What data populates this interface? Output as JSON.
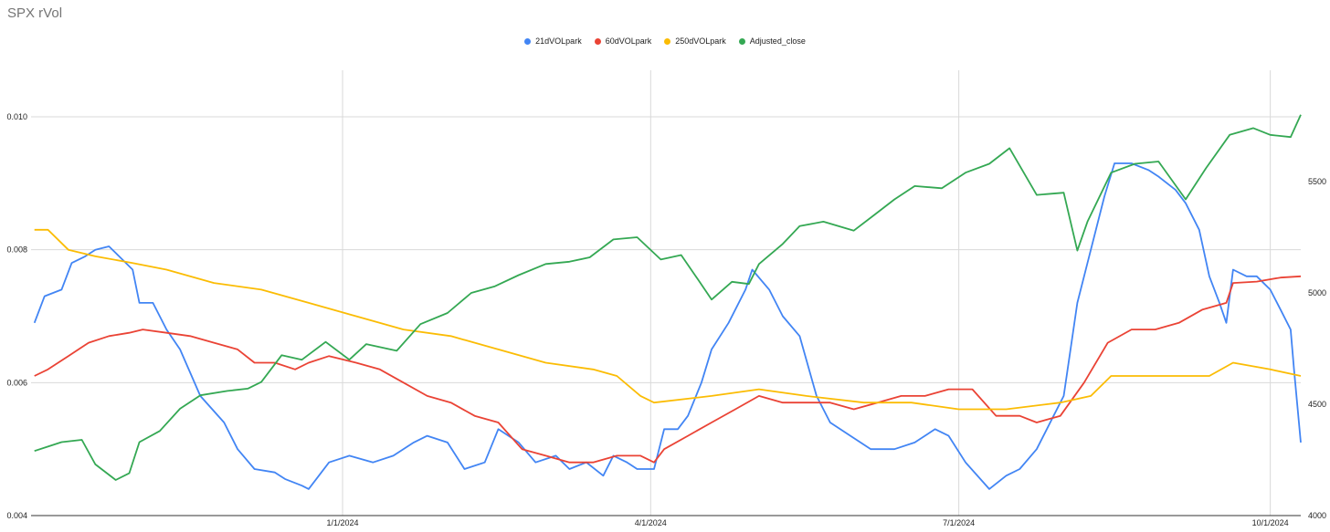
{
  "chart_data": {
    "type": "line",
    "title": "SPX rVol",
    "x_labels": [
      "1/1/2024",
      "4/1/2024",
      "7/1/2024",
      "10/1/2024"
    ],
    "x_range": [
      "2023-10-01",
      "2024-10-10"
    ],
    "y_left": {
      "range": [
        0.004,
        0.0107
      ],
      "ticks": [
        "0.004",
        "0.006",
        "0.008",
        "0.010"
      ]
    },
    "y_right": {
      "range": [
        4000,
        6000
      ],
      "ticks": [
        "4000",
        "4500",
        "5000",
        "5500"
      ]
    },
    "grid": true,
    "legend_position": "top",
    "series": [
      {
        "name": "21dVOLpark",
        "color": "#4285f4",
        "axis": "left",
        "points": [
          [
            "2023-10-02",
            0.0069
          ],
          [
            "2023-10-05",
            0.0073
          ],
          [
            "2023-10-10",
            0.0074
          ],
          [
            "2023-10-13",
            0.0078
          ],
          [
            "2023-10-17",
            0.0079
          ],
          [
            "2023-10-20",
            0.008
          ],
          [
            "2023-10-24",
            0.00805
          ],
          [
            "2023-10-27",
            0.0079
          ],
          [
            "2023-10-31",
            0.0077
          ],
          [
            "2023-11-02",
            0.0072
          ],
          [
            "2023-11-06",
            0.0072
          ],
          [
            "2023-11-10",
            0.0068
          ],
          [
            "2023-11-14",
            0.0065
          ],
          [
            "2023-11-20",
            0.0058
          ],
          [
            "2023-11-27",
            0.0054
          ],
          [
            "2023-12-01",
            0.005
          ],
          [
            "2023-12-06",
            0.0047
          ],
          [
            "2023-12-12",
            0.00465
          ],
          [
            "2023-12-15",
            0.00455
          ],
          [
            "2023-12-20",
            0.00445
          ],
          [
            "2023-12-22",
            0.0044
          ],
          [
            "2023-12-28",
            0.0048
          ],
          [
            "2024-01-03",
            0.0049
          ],
          [
            "2024-01-10",
            0.0048
          ],
          [
            "2024-01-16",
            0.0049
          ],
          [
            "2024-01-22",
            0.0051
          ],
          [
            "2024-01-26",
            0.0052
          ],
          [
            "2024-02-01",
            0.0051
          ],
          [
            "2024-02-06",
            0.0047
          ],
          [
            "2024-02-12",
            0.0048
          ],
          [
            "2024-02-16",
            0.0053
          ],
          [
            "2024-02-22",
            0.0051
          ],
          [
            "2024-02-27",
            0.0048
          ],
          [
            "2024-03-04",
            0.0049
          ],
          [
            "2024-03-08",
            0.0047
          ],
          [
            "2024-03-13",
            0.0048
          ],
          [
            "2024-03-18",
            0.0046
          ],
          [
            "2024-03-21",
            0.0049
          ],
          [
            "2024-03-25",
            0.0048
          ],
          [
            "2024-03-28",
            0.0047
          ],
          [
            "2024-04-02",
            0.0047
          ],
          [
            "2024-04-05",
            0.0053
          ],
          [
            "2024-04-09",
            0.0053
          ],
          [
            "2024-04-12",
            0.0055
          ],
          [
            "2024-04-16",
            0.006
          ],
          [
            "2024-04-19",
            0.0065
          ],
          [
            "2024-04-24",
            0.0069
          ],
          [
            "2024-04-29",
            0.0074
          ],
          [
            "2024-05-01",
            0.0077
          ],
          [
            "2024-05-06",
            0.0074
          ],
          [
            "2024-05-10",
            0.007
          ],
          [
            "2024-05-15",
            0.0067
          ],
          [
            "2024-05-20",
            0.0058
          ],
          [
            "2024-05-24",
            0.0054
          ],
          [
            "2024-05-30",
            0.0052
          ],
          [
            "2024-06-05",
            0.005
          ],
          [
            "2024-06-12",
            0.005
          ],
          [
            "2024-06-18",
            0.0051
          ],
          [
            "2024-06-24",
            0.0053
          ],
          [
            "2024-06-28",
            0.0052
          ],
          [
            "2024-07-03",
            0.0048
          ],
          [
            "2024-07-10",
            0.0044
          ],
          [
            "2024-07-15",
            0.0046
          ],
          [
            "2024-07-19",
            0.0047
          ],
          [
            "2024-07-24",
            0.005
          ],
          [
            "2024-07-29",
            0.0055
          ],
          [
            "2024-08-01",
            0.0058
          ],
          [
            "2024-08-05",
            0.0072
          ],
          [
            "2024-08-08",
            0.0078
          ],
          [
            "2024-08-13",
            0.0088
          ],
          [
            "2024-08-16",
            0.0093
          ],
          [
            "2024-08-21",
            0.0093
          ],
          [
            "2024-08-26",
            0.0092
          ],
          [
            "2024-08-29",
            0.0091
          ],
          [
            "2024-09-03",
            0.0089
          ],
          [
            "2024-09-06",
            0.0087
          ],
          [
            "2024-09-10",
            0.0083
          ],
          [
            "2024-09-13",
            0.0076
          ],
          [
            "2024-09-16",
            0.0072
          ],
          [
            "2024-09-18",
            0.0069
          ],
          [
            "2024-09-20",
            0.0077
          ],
          [
            "2024-09-24",
            0.0076
          ],
          [
            "2024-09-27",
            0.0076
          ],
          [
            "2024-10-01",
            0.0074
          ],
          [
            "2024-10-04",
            0.0071
          ],
          [
            "2024-10-07",
            0.0068
          ],
          [
            "2024-10-08",
            0.0062
          ],
          [
            "2024-10-10",
            0.0051
          ]
        ]
      },
      {
        "name": "60dVOLpark",
        "color": "#ea4335",
        "axis": "left",
        "points": [
          [
            "2023-10-02",
            0.0061
          ],
          [
            "2023-10-06",
            0.0062
          ],
          [
            "2023-10-12",
            0.0064
          ],
          [
            "2023-10-18",
            0.0066
          ],
          [
            "2023-10-24",
            0.0067
          ],
          [
            "2023-10-30",
            0.00675
          ],
          [
            "2023-11-03",
            0.0068
          ],
          [
            "2023-11-10",
            0.00675
          ],
          [
            "2023-11-17",
            0.0067
          ],
          [
            "2023-11-24",
            0.0066
          ],
          [
            "2023-12-01",
            0.0065
          ],
          [
            "2023-12-06",
            0.0063
          ],
          [
            "2023-12-12",
            0.0063
          ],
          [
            "2023-12-18",
            0.0062
          ],
          [
            "2023-12-22",
            0.0063
          ],
          [
            "2023-12-28",
            0.0064
          ],
          [
            "2024-01-05",
            0.0063
          ],
          [
            "2024-01-12",
            0.0062
          ],
          [
            "2024-01-19",
            0.006
          ],
          [
            "2024-01-26",
            0.0058
          ],
          [
            "2024-02-02",
            0.0057
          ],
          [
            "2024-02-09",
            0.0055
          ],
          [
            "2024-02-16",
            0.0054
          ],
          [
            "2024-02-23",
            0.005
          ],
          [
            "2024-03-01",
            0.0049
          ],
          [
            "2024-03-08",
            0.0048
          ],
          [
            "2024-03-15",
            0.0048
          ],
          [
            "2024-03-22",
            0.0049
          ],
          [
            "2024-03-29",
            0.0049
          ],
          [
            "2024-04-02",
            0.0048
          ],
          [
            "2024-04-05",
            0.005
          ],
          [
            "2024-04-12",
            0.0052
          ],
          [
            "2024-04-19",
            0.0054
          ],
          [
            "2024-04-26",
            0.0056
          ],
          [
            "2024-05-03",
            0.0058
          ],
          [
            "2024-05-10",
            0.0057
          ],
          [
            "2024-05-17",
            0.0057
          ],
          [
            "2024-05-24",
            0.0057
          ],
          [
            "2024-05-31",
            0.0056
          ],
          [
            "2024-06-07",
            0.0057
          ],
          [
            "2024-06-14",
            0.0058
          ],
          [
            "2024-06-21",
            0.0058
          ],
          [
            "2024-06-28",
            0.0059
          ],
          [
            "2024-07-05",
            0.0059
          ],
          [
            "2024-07-12",
            0.0055
          ],
          [
            "2024-07-19",
            0.0055
          ],
          [
            "2024-07-24",
            0.0054
          ],
          [
            "2024-07-31",
            0.0055
          ],
          [
            "2024-08-07",
            0.006
          ],
          [
            "2024-08-14",
            0.0066
          ],
          [
            "2024-08-21",
            0.0068
          ],
          [
            "2024-08-28",
            0.0068
          ],
          [
            "2024-09-04",
            0.0069
          ],
          [
            "2024-09-11",
            0.0071
          ],
          [
            "2024-09-18",
            0.0072
          ],
          [
            "2024-09-20",
            0.0075
          ],
          [
            "2024-09-27",
            0.00752
          ],
          [
            "2024-10-04",
            0.00758
          ],
          [
            "2024-10-10",
            0.0076
          ]
        ]
      },
      {
        "name": "250dVOLpark",
        "color": "#fbbc04",
        "axis": "left",
        "points": [
          [
            "2023-10-02",
            0.0083
          ],
          [
            "2023-10-06",
            0.0083
          ],
          [
            "2023-10-12",
            0.008
          ],
          [
            "2023-10-20",
            0.0079
          ],
          [
            "2023-10-31",
            0.0078
          ],
          [
            "2023-11-10",
            0.0077
          ],
          [
            "2023-11-24",
            0.0075
          ],
          [
            "2023-12-08",
            0.0074
          ],
          [
            "2023-12-22",
            0.0072
          ],
          [
            "2024-01-05",
            0.007
          ],
          [
            "2024-01-19",
            0.0068
          ],
          [
            "2024-02-02",
            0.0067
          ],
          [
            "2024-02-16",
            0.0065
          ],
          [
            "2024-03-01",
            0.0063
          ],
          [
            "2024-03-15",
            0.0062
          ],
          [
            "2024-03-22",
            0.0061
          ],
          [
            "2024-03-29",
            0.0058
          ],
          [
            "2024-04-02",
            0.0057
          ],
          [
            "2024-04-19",
            0.0058
          ],
          [
            "2024-05-03",
            0.0059
          ],
          [
            "2024-05-17",
            0.0058
          ],
          [
            "2024-06-03",
            0.0057
          ],
          [
            "2024-06-17",
            0.0057
          ],
          [
            "2024-07-01",
            0.0056
          ],
          [
            "2024-07-15",
            0.0056
          ],
          [
            "2024-07-31",
            0.0057
          ],
          [
            "2024-08-09",
            0.0058
          ],
          [
            "2024-08-15",
            0.0061
          ],
          [
            "2024-08-30",
            0.0061
          ],
          [
            "2024-09-13",
            0.0061
          ],
          [
            "2024-09-20",
            0.0063
          ],
          [
            "2024-10-01",
            0.0062
          ],
          [
            "2024-10-10",
            0.0061
          ]
        ]
      },
      {
        "name": "Adjusted_close",
        "color": "#34a853",
        "axis": "right",
        "points": [
          [
            "2023-10-02",
            4290
          ],
          [
            "2023-10-06",
            4310
          ],
          [
            "2023-10-10",
            4330
          ],
          [
            "2023-10-16",
            4340
          ],
          [
            "2023-10-20",
            4230
          ],
          [
            "2023-10-26",
            4160
          ],
          [
            "2023-10-30",
            4190
          ],
          [
            "2023-11-02",
            4330
          ],
          [
            "2023-11-08",
            4380
          ],
          [
            "2023-11-14",
            4480
          ],
          [
            "2023-11-20",
            4540
          ],
          [
            "2023-11-28",
            4560
          ],
          [
            "2023-12-04",
            4570
          ],
          [
            "2023-12-08",
            4600
          ],
          [
            "2023-12-14",
            4720
          ],
          [
            "2023-12-20",
            4700
          ],
          [
            "2023-12-27",
            4780
          ],
          [
            "2024-01-03",
            4700
          ],
          [
            "2024-01-08",
            4770
          ],
          [
            "2024-01-17",
            4740
          ],
          [
            "2024-01-24",
            4860
          ],
          [
            "2024-02-01",
            4910
          ],
          [
            "2024-02-08",
            5000
          ],
          [
            "2024-02-15",
            5030
          ],
          [
            "2024-02-22",
            5080
          ],
          [
            "2024-03-01",
            5130
          ],
          [
            "2024-03-08",
            5140
          ],
          [
            "2024-03-14",
            5160
          ],
          [
            "2024-03-21",
            5240
          ],
          [
            "2024-03-28",
            5250
          ],
          [
            "2024-04-04",
            5150
          ],
          [
            "2024-04-10",
            5170
          ],
          [
            "2024-04-15",
            5060
          ],
          [
            "2024-04-19",
            4970
          ],
          [
            "2024-04-25",
            5050
          ],
          [
            "2024-04-30",
            5040
          ],
          [
            "2024-05-03",
            5130
          ],
          [
            "2024-05-10",
            5220
          ],
          [
            "2024-05-15",
            5300
          ],
          [
            "2024-05-22",
            5320
          ],
          [
            "2024-05-31",
            5280
          ],
          [
            "2024-06-06",
            5350
          ],
          [
            "2024-06-12",
            5420
          ],
          [
            "2024-06-18",
            5480
          ],
          [
            "2024-06-26",
            5470
          ],
          [
            "2024-07-03",
            5540
          ],
          [
            "2024-07-10",
            5580
          ],
          [
            "2024-07-16",
            5650
          ],
          [
            "2024-07-24",
            5440
          ],
          [
            "2024-08-01",
            5450
          ],
          [
            "2024-08-05",
            5190
          ],
          [
            "2024-08-08",
            5320
          ],
          [
            "2024-08-15",
            5540
          ],
          [
            "2024-08-22",
            5580
          ],
          [
            "2024-08-29",
            5590
          ],
          [
            "2024-09-06",
            5420
          ],
          [
            "2024-09-12",
            5560
          ],
          [
            "2024-09-19",
            5710
          ],
          [
            "2024-09-26",
            5740
          ],
          [
            "2024-10-01",
            5710
          ],
          [
            "2024-10-07",
            5700
          ],
          [
            "2024-10-10",
            5800
          ]
        ]
      }
    ]
  }
}
